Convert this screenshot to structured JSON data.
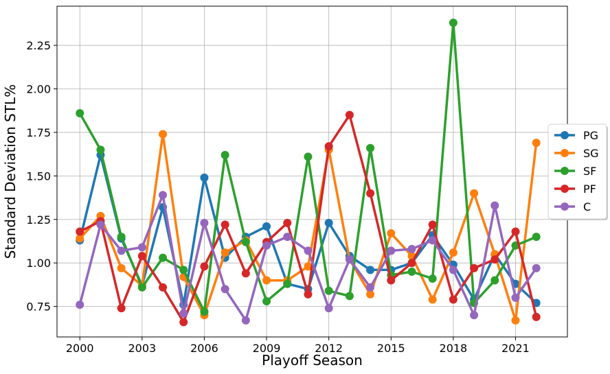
{
  "chart_data": {
    "type": "line",
    "xlabel": "Playoff Season",
    "ylabel": "Standard Deviation STL%",
    "x": [
      2000,
      2001,
      2002,
      2003,
      2004,
      2005,
      2006,
      2007,
      2008,
      2009,
      2010,
      2011,
      2012,
      2013,
      2014,
      2015,
      2016,
      2017,
      2018,
      2019,
      2020,
      2021,
      2022
    ],
    "xlim": [
      1998.9,
      2023.5
    ],
    "ylim": [
      0.575,
      2.475
    ],
    "x_ticks": [
      "2000",
      "2003",
      "2006",
      "2009",
      "2012",
      "2015",
      "2018",
      "2021"
    ],
    "y_ticks": [
      "0.75",
      "1.00",
      "1.25",
      "1.50",
      "1.75",
      "2.00",
      "2.25"
    ],
    "grid": true,
    "legend_position": "right",
    "series": [
      {
        "name": "PG",
        "color": "#1f77b4",
        "values": [
          1.13,
          1.62,
          1.14,
          0.87,
          1.32,
          0.76,
          1.49,
          1.03,
          1.15,
          1.21,
          0.88,
          0.85,
          1.23,
          1.04,
          0.96,
          0.96,
          1.0,
          1.16,
          0.99,
          0.79,
          1.05,
          0.88,
          0.77
        ]
      },
      {
        "name": "SG",
        "color": "#ff7f0e",
        "values": [
          1.14,
          1.27,
          0.97,
          0.87,
          1.74,
          0.92,
          0.7,
          1.06,
          1.13,
          0.9,
          0.9,
          0.98,
          1.65,
          1.02,
          0.82,
          1.17,
          1.04,
          0.79,
          1.06,
          1.4,
          1.05,
          0.67,
          1.69
        ]
      },
      {
        "name": "SF",
        "color": "#2ca02c",
        "values": [
          1.86,
          1.65,
          1.15,
          0.86,
          1.03,
          0.96,
          0.72,
          1.62,
          1.12,
          0.78,
          0.88,
          1.61,
          0.84,
          0.81,
          1.66,
          0.93,
          0.95,
          0.91,
          2.38,
          0.77,
          0.9,
          1.1,
          1.15
        ]
      },
      {
        "name": "PF",
        "color": "#d62728",
        "values": [
          1.18,
          1.24,
          0.74,
          1.04,
          0.86,
          0.66,
          0.98,
          1.22,
          0.94,
          1.12,
          1.23,
          0.82,
          1.67,
          1.85,
          1.4,
          0.9,
          1.0,
          1.22,
          0.79,
          0.97,
          1.02,
          1.18,
          0.69
        ]
      },
      {
        "name": "C",
        "color": "#9467bd",
        "values": [
          0.76,
          1.22,
          1.07,
          1.09,
          1.39,
          0.71,
          1.23,
          0.85,
          0.67,
          1.1,
          1.15,
          1.07,
          0.74,
          1.02,
          0.86,
          1.07,
          1.08,
          1.13,
          0.96,
          0.7,
          1.33,
          0.8,
          0.97
        ]
      }
    ]
  }
}
